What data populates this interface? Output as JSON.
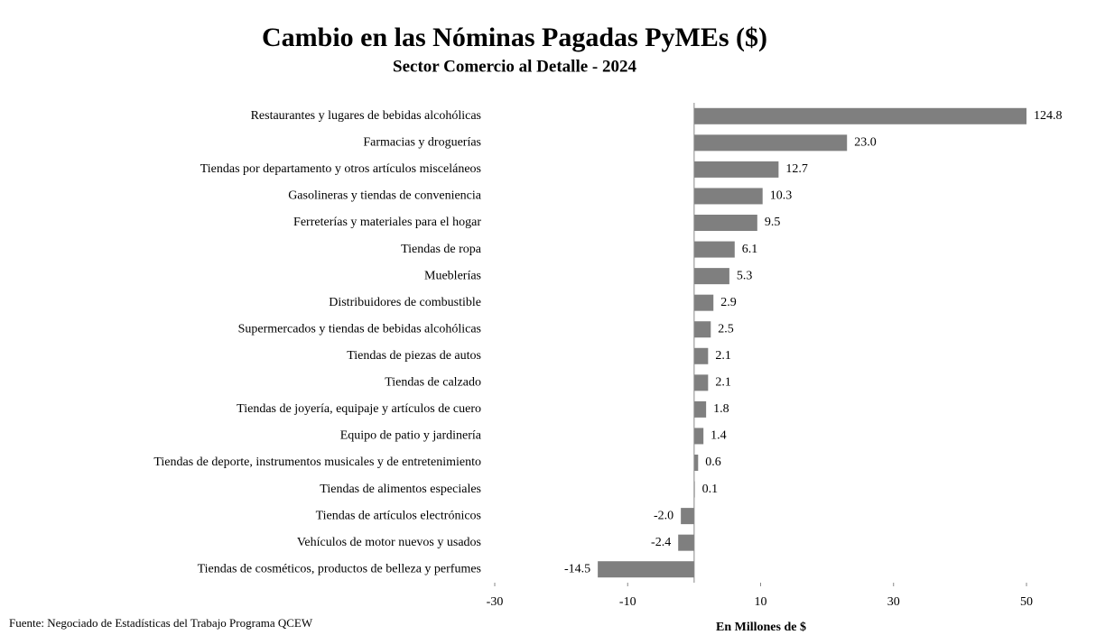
{
  "chart_data": {
    "type": "hbar",
    "title": "Cambio en las Nóminas Pagadas PyMEs ($)",
    "subtitle": "Sector Comercio al Detalle - 2024",
    "x_label": "En Millones de $",
    "source": "Fuente: Negociado de Estadísticas del Trabajo Programa QCEW",
    "categories": [
      "Restaurantes y lugares de bebidas alcohólicas",
      "Farmacias y droguerías",
      "Tiendas por departamento y otros artículos misceláneos",
      "Gasolineras y tiendas de conveniencia",
      "Ferreterías y materiales para el hogar",
      "Tiendas de ropa",
      "Mueblerías",
      "Distribuidores de combustible",
      "Supermercados y tiendas de bebidas alcohólicas",
      "Tiendas de piezas de autos",
      "Tiendas de calzado",
      "Tiendas de joyería, equipaje y artículos de cuero",
      "Equipo de patio y jardinería",
      "Tiendas de deporte, instrumentos musicales y de entretenimiento",
      "Tiendas de alimentos especiales",
      "Tiendas de artículos electrónicos",
      "Vehículos de motor nuevos y usados",
      "Tiendas de cosméticos, productos de belleza y perfumes"
    ],
    "values": [
      124.8,
      23.0,
      12.7,
      10.3,
      9.5,
      6.1,
      5.3,
      2.9,
      2.5,
      2.1,
      2.1,
      1.8,
      1.4,
      0.6,
      0.1,
      -2.0,
      -2.4,
      -14.5
    ],
    "value_labels": [
      "124.8",
      "23.0",
      "12.7",
      "10.3",
      "9.5",
      "6.1",
      "5.3",
      "2.9",
      "2.5",
      "2.1",
      "2.1",
      "1.8",
      "1.4",
      "0.6",
      "0.1",
      "-2.0",
      "-2.4",
      "-14.5"
    ],
    "color": "#7f7f7f",
    "xlim": [
      -30,
      50
    ],
    "xticks": [
      -30,
      -10,
      10,
      30,
      50
    ]
  }
}
